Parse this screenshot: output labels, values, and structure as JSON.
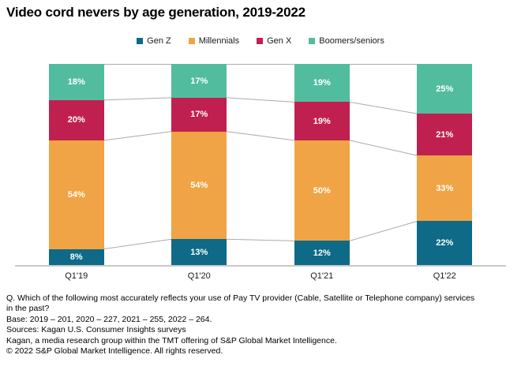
{
  "title": "Video cord nevers by age generation, 2019-2022",
  "chart_data": {
    "type": "bar",
    "stacked": true,
    "title": "Video cord nevers by age generation, 2019-2022",
    "categories": [
      "Q1'19",
      "Q1'20",
      "Q1'21",
      "Q1'22"
    ],
    "series": [
      {
        "name": "Gen Z",
        "color": "#0E6A87",
        "values": [
          8,
          13,
          12,
          22
        ]
      },
      {
        "name": "Millennials",
        "color": "#F0A445",
        "values": [
          54,
          54,
          50,
          33
        ]
      },
      {
        "name": "Gen X",
        "color": "#C02050",
        "values": [
          20,
          17,
          19,
          21
        ]
      },
      {
        "name": "Boomers/seniors",
        "color": "#52BD9E",
        "values": [
          18,
          17,
          19,
          25
        ]
      }
    ],
    "value_suffix": "%",
    "value_label_color": "#ffffff",
    "legend_position": "top",
    "ylim": [
      0,
      100
    ],
    "grid": false,
    "connector_color": "#ABABAB",
    "axis_line_color": "#C9C9C9"
  },
  "footer": {
    "question": "Q. Which of the following most accurately reflects your use of Pay TV provider (Cable, Satellite or Telephone company) services in the past?",
    "base": "Base: 2019 – 201, 2020 – 227, 2021 – 255, 2022 – 264.",
    "sources": "Sources: Kagan U.S. Consumer Insights surveys",
    "kagan": "Kagan, a media research group within the TMT offering of S&P Global Market Intelligence.",
    "copyright": "© 2022 S&P Global Market Intelligence. All rights reserved."
  }
}
